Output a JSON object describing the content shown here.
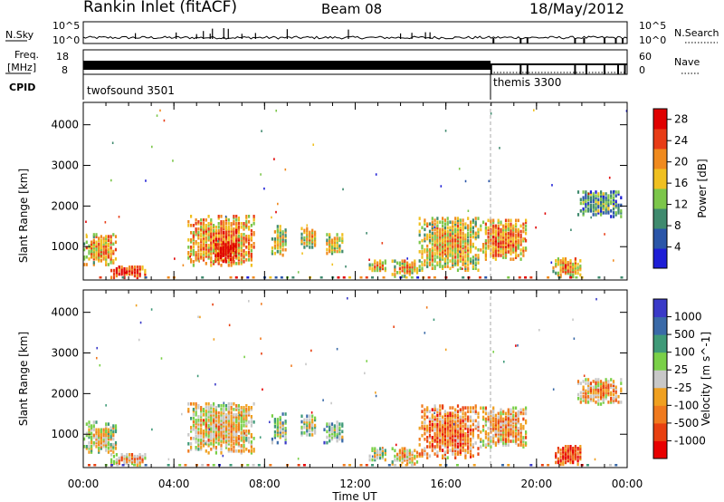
{
  "header": {
    "site": "Rankin Inlet (fitACF)",
    "beam": "Beam 08",
    "date": "18/May/2012"
  },
  "top_panels": {
    "nsky_label": "N.Sky",
    "nsky_ticks": [
      "10^5",
      "10^0"
    ],
    "nsearch_label": "N.Search",
    "nsearch_ticks": [
      "10^5",
      "10^0"
    ],
    "freq_label_1": "Freq.",
    "freq_label_2": "[MHz]",
    "freq_ticks": [
      "18",
      "8"
    ],
    "nave_label": "Nave",
    "nave_ticks": [
      "60",
      "0"
    ],
    "cpid_label": "CPID",
    "cpid_entries": [
      {
        "name": "twofsound 3501",
        "start_hour": 0
      },
      {
        "name": "themis 3300",
        "start_hour": 18
      }
    ]
  },
  "x_axis": {
    "label": "Time UT",
    "ticks": [
      "00:00",
      "04:00",
      "08:00",
      "12:00",
      "16:00",
      "20:00",
      "00:00"
    ]
  },
  "colors": {
    "power": [
      "#1e1ed6",
      "#2a55a8",
      "#3f8a6e",
      "#7cc64a",
      "#f0c020",
      "#f08a1e",
      "#e83c16",
      "#e00000"
    ],
    "velocity": [
      "#3a3ac8",
      "#3a6aa8",
      "#3f9a78",
      "#7ad048",
      "#c8c8c8",
      "#f0a020",
      "#f07a1e",
      "#e84010",
      "#e80000"
    ]
  },
  "chart_data": [
    {
      "type": "heatmap",
      "name": "power",
      "ylabel": "Slant Range [km]",
      "xlim_hours": [
        0,
        24
      ],
      "ylim_km": [
        180,
        4550
      ],
      "yticks": [
        "1000",
        "2000",
        "3000",
        "4000"
      ],
      "colorbar": {
        "label": "Power [dB]",
        "ticks": [
          "4",
          "8",
          "12",
          "16",
          "20",
          "24",
          "28"
        ],
        "range": [
          0,
          30
        ]
      },
      "regions": [
        {
          "t0": 0.0,
          "t1": 1.5,
          "r0": 520,
          "r1": 1300,
          "level": 0.55
        },
        {
          "t0": 1.2,
          "t1": 2.8,
          "r0": 200,
          "r1": 500,
          "level": 0.75
        },
        {
          "t0": 4.6,
          "t1": 7.6,
          "r0": 500,
          "r1": 1750,
          "level": 0.6
        },
        {
          "t0": 5.8,
          "t1": 6.8,
          "r0": 600,
          "r1": 1100,
          "level": 0.9
        },
        {
          "t0": 8.3,
          "t1": 9.0,
          "r0": 750,
          "r1": 1500,
          "level": 0.45
        },
        {
          "t0": 9.6,
          "t1": 10.3,
          "r0": 900,
          "r1": 1450,
          "level": 0.45
        },
        {
          "t0": 10.6,
          "t1": 11.5,
          "r0": 750,
          "r1": 1300,
          "level": 0.45
        },
        {
          "t0": 12.6,
          "t1": 13.4,
          "r0": 330,
          "r1": 650,
          "level": 0.5
        },
        {
          "t0": 13.6,
          "t1": 14.8,
          "r0": 230,
          "r1": 650,
          "level": 0.5
        },
        {
          "t0": 14.8,
          "t1": 17.5,
          "r0": 380,
          "r1": 1700,
          "level": 0.5
        },
        {
          "t0": 17.5,
          "t1": 19.6,
          "r0": 650,
          "r1": 1650,
          "level": 0.6
        },
        {
          "t0": 20.7,
          "t1": 22.0,
          "r0": 220,
          "r1": 700,
          "level": 0.55
        },
        {
          "t0": 21.8,
          "t1": 23.8,
          "r0": 1700,
          "r1": 2350,
          "level": 0.25
        }
      ]
    },
    {
      "type": "heatmap",
      "name": "velocity",
      "ylabel": "Slant Range [km]",
      "xlim_hours": [
        0,
        24
      ],
      "ylim_km": [
        180,
        4550
      ],
      "yticks": [
        "1000",
        "2000",
        "3000",
        "4000"
      ],
      "colorbar": {
        "label": "Velocity [m s^-1]",
        "ticks": [
          "1000",
          "500",
          "100",
          "25",
          "-25",
          "-100",
          "-500",
          "-1000"
        ]
      },
      "regions": [
        {
          "t0": 0.0,
          "t1": 1.5,
          "r0": 520,
          "r1": 1300,
          "level": 0.45
        },
        {
          "t0": 1.2,
          "t1": 2.8,
          "r0": 200,
          "r1": 500,
          "level": 0.55
        },
        {
          "t0": 4.6,
          "t1": 7.6,
          "r0": 500,
          "r1": 1750,
          "level": 0.5
        },
        {
          "t0": 8.3,
          "t1": 9.0,
          "r0": 750,
          "r1": 1500,
          "level": 0.3
        },
        {
          "t0": 9.6,
          "t1": 10.3,
          "r0": 900,
          "r1": 1450,
          "level": 0.35
        },
        {
          "t0": 10.6,
          "t1": 11.5,
          "r0": 750,
          "r1": 1300,
          "level": 0.3
        },
        {
          "t0": 12.6,
          "t1": 13.4,
          "r0": 330,
          "r1": 650,
          "level": 0.45
        },
        {
          "t0": 13.6,
          "t1": 14.8,
          "r0": 230,
          "r1": 650,
          "level": 0.5
        },
        {
          "t0": 14.8,
          "t1": 17.5,
          "r0": 380,
          "r1": 1700,
          "level": 0.65
        },
        {
          "t0": 17.5,
          "t1": 19.6,
          "r0": 650,
          "r1": 1650,
          "level": 0.55
        },
        {
          "t0": 20.7,
          "t1": 22.0,
          "r0": 220,
          "r1": 700,
          "level": 0.75
        },
        {
          "t0": 21.8,
          "t1": 23.8,
          "r0": 1700,
          "r1": 2350,
          "level": 0.55
        }
      ]
    }
  ]
}
